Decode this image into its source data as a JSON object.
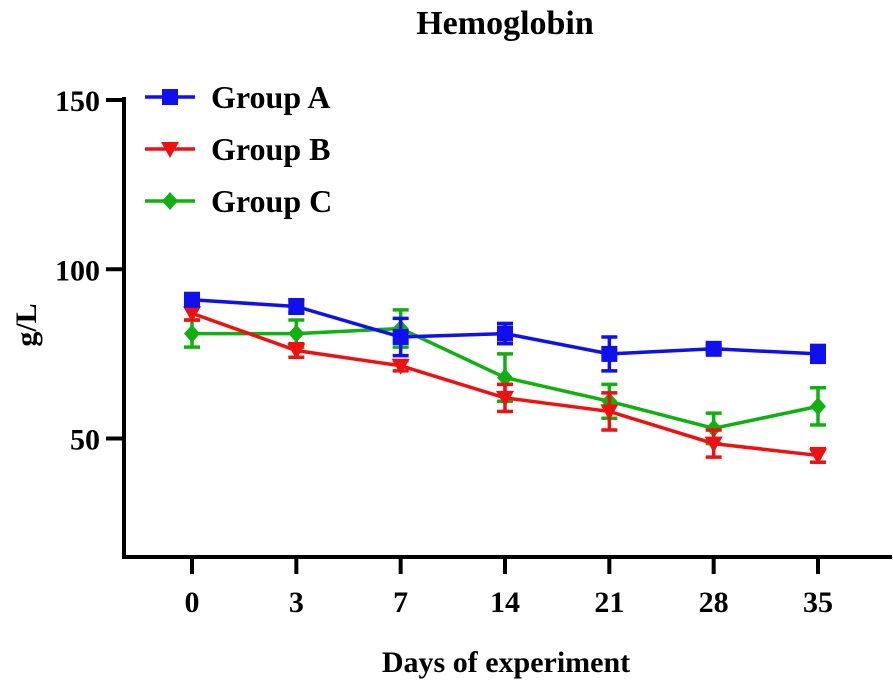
{
  "chart_data": {
    "type": "line",
    "title": "Hemoglobin",
    "xlabel": "Days of experiment",
    "ylabel": "g/L",
    "categories": [
      "0",
      "3",
      "7",
      "14",
      "21",
      "28",
      "35"
    ],
    "ylim": [
      15,
      150
    ],
    "yticks": [
      50,
      100,
      150
    ],
    "legend_position": "top-left",
    "series": [
      {
        "name": "Group A",
        "color": "#1010ee",
        "marker": "square",
        "values": [
          91,
          89,
          80,
          81,
          75,
          76.5,
          75
        ],
        "errors": [
          1.5,
          2,
          5.5,
          3,
          5,
          1,
          2.5
        ]
      },
      {
        "name": "Group B",
        "color": "#ee1111",
        "marker": "triangle-down",
        "values": [
          87,
          76,
          71.5,
          62,
          58,
          48.5,
          45
        ],
        "errors": [
          2,
          2,
          1.5,
          4,
          5.5,
          4,
          2
        ]
      },
      {
        "name": "Group C",
        "color": "#10b010",
        "marker": "diamond",
        "values": [
          81,
          81,
          82.5,
          68,
          61,
          53,
          59.5
        ],
        "errors": [
          4,
          4,
          5.5,
          7,
          5,
          4.5,
          5.5
        ]
      }
    ]
  }
}
